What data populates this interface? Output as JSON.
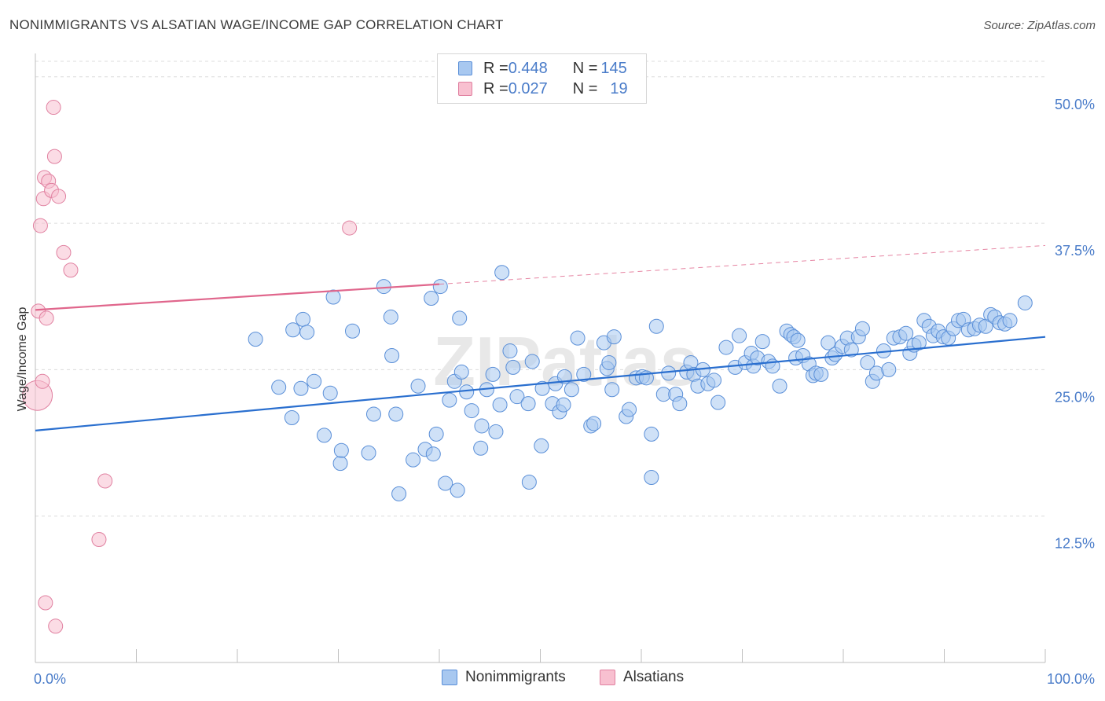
{
  "title": "NONIMMIGRANTS VS ALSATIAN WAGE/INCOME GAP CORRELATION CHART",
  "source": "Source: ZipAtlas.com",
  "watermark": "ZIPatlas",
  "legend": {
    "rows": [
      {
        "r_label": "R = ",
        "r_value": "0.448",
        "n_label": "N = ",
        "n_value": "145",
        "color": "#a8c8f0",
        "border": "#5a8fd8"
      },
      {
        "r_label": "R = ",
        "r_value": "0.027",
        "n_label": "N = ",
        "n_value": "19",
        "color": "#f8c0d0",
        "border": "#e080a0"
      }
    ]
  },
  "bottom_legend": [
    {
      "label": "Nonimmigrants",
      "color": "#a8c8f0",
      "border": "#5a8fd8"
    },
    {
      "label": "Alsatians",
      "color": "#f8c0d0",
      "border": "#e080a0"
    }
  ],
  "chart_data": {
    "type": "scatter",
    "title": "NONIMMIGRANTS VS ALSATIAN WAGE/INCOME GAP CORRELATION CHART",
    "xlabel": "",
    "ylabel": "Wage/Income Gap",
    "xlim": [
      0,
      100
    ],
    "ylim": [
      0,
      52
    ],
    "x_tick_labels": [
      "0.0%",
      "100.0%"
    ],
    "y_ticks": [
      12.5,
      25.0,
      37.5,
      50.0
    ],
    "y_tick_labels": [
      "12.5%",
      "25.0%",
      "37.5%",
      "50.0%"
    ],
    "grid": true,
    "series": [
      {
        "name": "Nonimmigrants",
        "color": "#a8c8f0",
        "stroke": "#5a8fd8",
        "trend": {
          "x0": 0,
          "y0": 19.8,
          "x1": 100,
          "y1": 27.8,
          "color": "#2a6fcf"
        },
        "points": [
          [
            21.8,
            27.6
          ],
          [
            24.1,
            23.5
          ],
          [
            25.4,
            20.9
          ],
          [
            25.5,
            28.4
          ],
          [
            26.3,
            23.4
          ],
          [
            26.5,
            29.3
          ],
          [
            26.9,
            28.2
          ],
          [
            27.6,
            24.0
          ],
          [
            28.6,
            19.4
          ],
          [
            29.2,
            23.0
          ],
          [
            29.5,
            31.2
          ],
          [
            30.2,
            17.0
          ],
          [
            30.3,
            18.1
          ],
          [
            31.4,
            28.3
          ],
          [
            33.0,
            17.9
          ],
          [
            33.5,
            21.2
          ],
          [
            34.5,
            32.1
          ],
          [
            35.2,
            29.5
          ],
          [
            35.3,
            26.2
          ],
          [
            35.7,
            21.2
          ],
          [
            36.0,
            14.4
          ],
          [
            37.4,
            17.3
          ],
          [
            37.9,
            23.6
          ],
          [
            38.6,
            18.2
          ],
          [
            39.2,
            31.1
          ],
          [
            39.4,
            17.8
          ],
          [
            39.7,
            19.5
          ],
          [
            40.1,
            32.1
          ],
          [
            40.6,
            15.3
          ],
          [
            41.0,
            22.4
          ],
          [
            41.5,
            24.0
          ],
          [
            41.8,
            14.7
          ],
          [
            42.0,
            29.4
          ],
          [
            42.2,
            24.8
          ],
          [
            42.7,
            23.1
          ],
          [
            43.2,
            21.5
          ],
          [
            44.1,
            18.3
          ],
          [
            44.2,
            20.2
          ],
          [
            44.7,
            23.3
          ],
          [
            45.3,
            24.6
          ],
          [
            45.6,
            19.7
          ],
          [
            46.0,
            22.0
          ],
          [
            46.2,
            33.3
          ],
          [
            47.0,
            26.6
          ],
          [
            47.3,
            25.2
          ],
          [
            47.7,
            22.7
          ],
          [
            48.8,
            22.1
          ],
          [
            48.9,
            15.4
          ],
          [
            49.2,
            25.7
          ],
          [
            50.1,
            18.5
          ],
          [
            50.2,
            23.4
          ],
          [
            51.2,
            22.1
          ],
          [
            51.5,
            23.8
          ],
          [
            51.9,
            21.4
          ],
          [
            52.3,
            22.0
          ],
          [
            52.4,
            24.4
          ],
          [
            53.1,
            23.3
          ],
          [
            53.7,
            27.7
          ],
          [
            54.3,
            24.6
          ],
          [
            55.0,
            20.2
          ],
          [
            55.3,
            20.4
          ],
          [
            56.3,
            27.3
          ],
          [
            56.6,
            25.1
          ],
          [
            56.8,
            25.6
          ],
          [
            57.1,
            23.3
          ],
          [
            57.3,
            27.8
          ],
          [
            58.5,
            21.0
          ],
          [
            58.8,
            21.6
          ],
          [
            59.5,
            24.3
          ],
          [
            60.1,
            24.4
          ],
          [
            60.5,
            24.3
          ],
          [
            61.0,
            15.8
          ],
          [
            61.0,
            19.5
          ],
          [
            61.5,
            28.7
          ],
          [
            62.2,
            22.9
          ],
          [
            62.7,
            24.7
          ],
          [
            63.4,
            22.9
          ],
          [
            63.8,
            22.1
          ],
          [
            64.5,
            24.8
          ],
          [
            64.9,
            25.6
          ],
          [
            65.2,
            24.6
          ],
          [
            65.6,
            23.6
          ],
          [
            66.1,
            25.0
          ],
          [
            66.6,
            23.8
          ],
          [
            67.2,
            24.1
          ],
          [
            67.6,
            22.2
          ],
          [
            68.4,
            26.9
          ],
          [
            69.3,
            25.2
          ],
          [
            69.7,
            27.9
          ],
          [
            70.3,
            25.6
          ],
          [
            70.9,
            26.4
          ],
          [
            71.1,
            25.3
          ],
          [
            71.5,
            26.0
          ],
          [
            72.0,
            27.4
          ],
          [
            72.6,
            25.7
          ],
          [
            73.0,
            25.3
          ],
          [
            73.7,
            23.6
          ],
          [
            74.4,
            28.3
          ],
          [
            74.8,
            28.0
          ],
          [
            75.1,
            27.8
          ],
          [
            75.3,
            26.0
          ],
          [
            75.5,
            27.5
          ],
          [
            76.0,
            26.2
          ],
          [
            76.6,
            25.5
          ],
          [
            77.0,
            24.5
          ],
          [
            77.3,
            24.7
          ],
          [
            77.8,
            24.6
          ],
          [
            78.5,
            27.3
          ],
          [
            78.9,
            26.0
          ],
          [
            79.2,
            26.3
          ],
          [
            79.9,
            27.0
          ],
          [
            80.4,
            27.7
          ],
          [
            80.8,
            26.7
          ],
          [
            81.5,
            27.8
          ],
          [
            81.9,
            28.5
          ],
          [
            82.4,
            25.6
          ],
          [
            82.9,
            24.0
          ],
          [
            83.3,
            24.7
          ],
          [
            84.0,
            26.6
          ],
          [
            84.5,
            25.0
          ],
          [
            85.0,
            27.7
          ],
          [
            85.6,
            27.8
          ],
          [
            86.2,
            28.1
          ],
          [
            86.6,
            26.4
          ],
          [
            87.0,
            27.1
          ],
          [
            87.5,
            27.3
          ],
          [
            88.0,
            29.2
          ],
          [
            88.5,
            28.7
          ],
          [
            88.9,
            27.9
          ],
          [
            89.4,
            28.3
          ],
          [
            89.9,
            27.8
          ],
          [
            90.4,
            27.7
          ],
          [
            90.9,
            28.5
          ],
          [
            91.4,
            29.2
          ],
          [
            91.9,
            29.3
          ],
          [
            92.4,
            28.4
          ],
          [
            93.0,
            28.5
          ],
          [
            93.5,
            28.8
          ],
          [
            94.1,
            28.7
          ],
          [
            94.6,
            29.7
          ],
          [
            95.0,
            29.5
          ],
          [
            95.5,
            29.0
          ],
          [
            96.0,
            28.9
          ],
          [
            96.5,
            29.2
          ],
          [
            98.0,
            30.7
          ]
        ]
      },
      {
        "name": "Alsatians",
        "color": "#f8c0d0",
        "stroke": "#e080a0",
        "trend": {
          "x0": 0,
          "y0": 30.1,
          "x1": 40,
          "y1": 32.3,
          "dash_x1": 100,
          "dash_y1": 35.6,
          "color": "#e0668c"
        },
        "points": [
          [
            0.2,
            22.8
          ],
          [
            0.3,
            30.0
          ],
          [
            0.5,
            37.3
          ],
          [
            0.7,
            24.0
          ],
          [
            0.8,
            39.6
          ],
          [
            0.9,
            41.4
          ],
          [
            1.1,
            29.4
          ],
          [
            1.3,
            41.1
          ],
          [
            1.6,
            40.3
          ],
          [
            1.8,
            47.4
          ],
          [
            1.9,
            43.2
          ],
          [
            2.3,
            39.8
          ],
          [
            2.8,
            35.0
          ],
          [
            3.5,
            33.5
          ],
          [
            6.3,
            10.5
          ],
          [
            6.9,
            15.5
          ],
          [
            31.1,
            37.1
          ],
          [
            1.0,
            5.1
          ],
          [
            2.0,
            3.1
          ]
        ]
      }
    ]
  }
}
